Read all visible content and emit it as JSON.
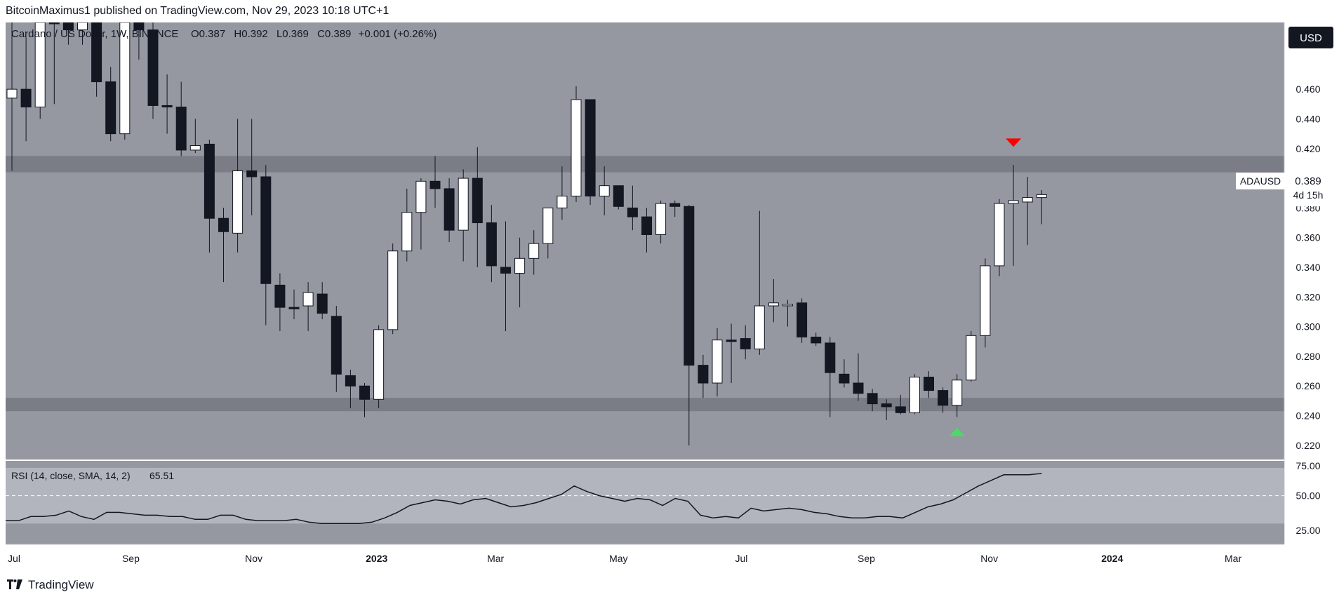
{
  "header": {
    "published_line": "BitcoinMaximus1 published on TradingView.com, Nov 29, 2023 10:18 UTC+1"
  },
  "legend": {
    "symbol_line": "Cardano / US Dollar, 1W, BINANCE",
    "open_label": "O",
    "open_value": "0.387",
    "high_label": "H",
    "high_value": "0.392",
    "low_label": "L",
    "low_value": "0.369",
    "close_label": "C",
    "close_value": "0.389",
    "change": "+0.001 (+0.26%)"
  },
  "currency_button": "USD",
  "price_tag": {
    "symbol": "ADAUSD",
    "price": "0.389",
    "countdown": "4d 15h"
  },
  "rsi_legend": {
    "label": "RSI (14, close, SMA, 14, 2)",
    "value": "65.51"
  },
  "footer": {
    "logo_text": "TradingView",
    "logo_icon": "tradingview-logo-icon"
  },
  "colors": {
    "background": "#9598a1",
    "candle_up": "#ffffff",
    "candle_down": "#131722",
    "zone": "#7a7d86",
    "arrow_down": "#ff0000",
    "arrow_up": "#4cd964",
    "rsi_band": "#b2b5be",
    "rsi_line": "#131722",
    "price_tag_bg": "#ffffff"
  },
  "chart_data": [
    {
      "type": "candlestick",
      "title": "Cardano / US Dollar, 1W, BINANCE",
      "x_ticks": [
        "Jul",
        "Sep",
        "Nov",
        "2023",
        "Mar",
        "May",
        "Jul",
        "Sep",
        "Nov",
        "2024",
        "Mar"
      ],
      "y_ticks": [
        "0.220",
        "0.240",
        "0.260",
        "0.280",
        "0.300",
        "0.320",
        "0.340",
        "0.360",
        "0.380",
        "0.400",
        "0.420",
        "0.440",
        "0.460"
      ],
      "ylim": [
        0.21,
        0.505
      ],
      "zones": [
        {
          "name": "resistance",
          "from": 0.404,
          "to": 0.415
        },
        {
          "name": "support",
          "from": 0.243,
          "to": 0.252
        }
      ],
      "candles": [
        {
          "date": "2022-07-04",
          "o": 0.454,
          "h": 0.52,
          "l": 0.405,
          "c": 0.46
        },
        {
          "date": "2022-07-11",
          "o": 0.46,
          "h": 0.495,
          "l": 0.425,
          "c": 0.448
        },
        {
          "date": "2022-07-18",
          "o": 0.448,
          "h": 0.55,
          "l": 0.44,
          "c": 0.53
        },
        {
          "date": "2022-07-25",
          "o": 0.53,
          "h": 0.56,
          "l": 0.45,
          "c": 0.52
        },
        {
          "date": "2022-08-01",
          "o": 0.52,
          "h": 0.55,
          "l": 0.49,
          "c": 0.5
        },
        {
          "date": "2022-08-08",
          "o": 0.5,
          "h": 0.57,
          "l": 0.49,
          "c": 0.53
        },
        {
          "date": "2022-08-15",
          "o": 0.53,
          "h": 0.56,
          "l": 0.455,
          "c": 0.465
        },
        {
          "date": "2022-08-22",
          "o": 0.465,
          "h": 0.475,
          "l": 0.425,
          "c": 0.43
        },
        {
          "date": "2022-08-29",
          "o": 0.43,
          "h": 0.55,
          "l": 0.426,
          "c": 0.53
        },
        {
          "date": "2022-09-05",
          "o": 0.53,
          "h": 0.55,
          "l": 0.48,
          "c": 0.5
        },
        {
          "date": "2022-09-12",
          "o": 0.5,
          "h": 0.52,
          "l": 0.44,
          "c": 0.449
        },
        {
          "date": "2022-09-19",
          "o": 0.449,
          "h": 0.47,
          "l": 0.43,
          "c": 0.448
        },
        {
          "date": "2022-09-26",
          "o": 0.448,
          "h": 0.465,
          "l": 0.415,
          "c": 0.419
        },
        {
          "date": "2022-10-03",
          "o": 0.419,
          "h": 0.44,
          "l": 0.417,
          "c": 0.422
        },
        {
          "date": "2022-10-10",
          "o": 0.423,
          "h": 0.426,
          "l": 0.35,
          "c": 0.373
        },
        {
          "date": "2022-10-17",
          "o": 0.373,
          "h": 0.38,
          "l": 0.33,
          "c": 0.364
        },
        {
          "date": "2022-10-24",
          "o": 0.363,
          "h": 0.44,
          "l": 0.35,
          "c": 0.405
        },
        {
          "date": "2022-10-31",
          "o": 0.405,
          "h": 0.44,
          "l": 0.375,
          "c": 0.401
        },
        {
          "date": "2022-11-07",
          "o": 0.401,
          "h": 0.409,
          "l": 0.301,
          "c": 0.329
        },
        {
          "date": "2022-11-14",
          "o": 0.328,
          "h": 0.336,
          "l": 0.297,
          "c": 0.313
        },
        {
          "date": "2022-11-21",
          "o": 0.313,
          "h": 0.325,
          "l": 0.305,
          "c": 0.312
        },
        {
          "date": "2022-11-28",
          "o": 0.314,
          "h": 0.33,
          "l": 0.297,
          "c": 0.323
        },
        {
          "date": "2022-12-05",
          "o": 0.322,
          "h": 0.33,
          "l": 0.305,
          "c": 0.309
        },
        {
          "date": "2022-12-12",
          "o": 0.307,
          "h": 0.314,
          "l": 0.256,
          "c": 0.268
        },
        {
          "date": "2022-12-19",
          "o": 0.267,
          "h": 0.271,
          "l": 0.245,
          "c": 0.26
        },
        {
          "date": "2022-12-26",
          "o": 0.26,
          "h": 0.262,
          "l": 0.239,
          "c": 0.251
        },
        {
          "date": "2023-01-02",
          "o": 0.251,
          "h": 0.301,
          "l": 0.245,
          "c": 0.298
        },
        {
          "date": "2023-01-09",
          "o": 0.298,
          "h": 0.356,
          "l": 0.295,
          "c": 0.351
        },
        {
          "date": "2023-01-16",
          "o": 0.351,
          "h": 0.393,
          "l": 0.344,
          "c": 0.377
        },
        {
          "date": "2023-01-23",
          "o": 0.377,
          "h": 0.4,
          "l": 0.352,
          "c": 0.398
        },
        {
          "date": "2023-01-30",
          "o": 0.398,
          "h": 0.415,
          "l": 0.38,
          "c": 0.393
        },
        {
          "date": "2023-02-06",
          "o": 0.393,
          "h": 0.4,
          "l": 0.357,
          "c": 0.365
        },
        {
          "date": "2023-02-13",
          "o": 0.365,
          "h": 0.406,
          "l": 0.344,
          "c": 0.4
        },
        {
          "date": "2023-02-20",
          "o": 0.4,
          "h": 0.421,
          "l": 0.34,
          "c": 0.37
        },
        {
          "date": "2023-02-27",
          "o": 0.37,
          "h": 0.382,
          "l": 0.33,
          "c": 0.341
        },
        {
          "date": "2023-03-06",
          "o": 0.34,
          "h": 0.371,
          "l": 0.297,
          "c": 0.336
        },
        {
          "date": "2023-03-13",
          "o": 0.336,
          "h": 0.36,
          "l": 0.313,
          "c": 0.346
        },
        {
          "date": "2023-03-20",
          "o": 0.346,
          "h": 0.365,
          "l": 0.335,
          "c": 0.356
        },
        {
          "date": "2023-03-27",
          "o": 0.356,
          "h": 0.38,
          "l": 0.346,
          "c": 0.38
        },
        {
          "date": "2023-04-03",
          "o": 0.38,
          "h": 0.408,
          "l": 0.372,
          "c": 0.388
        },
        {
          "date": "2023-04-10",
          "o": 0.388,
          "h": 0.462,
          "l": 0.384,
          "c": 0.453
        },
        {
          "date": "2023-04-17",
          "o": 0.453,
          "h": 0.453,
          "l": 0.382,
          "c": 0.388
        },
        {
          "date": "2023-04-24",
          "o": 0.388,
          "h": 0.408,
          "l": 0.375,
          "c": 0.395
        },
        {
          "date": "2023-05-01",
          "o": 0.395,
          "h": 0.395,
          "l": 0.379,
          "c": 0.381
        },
        {
          "date": "2023-05-08",
          "o": 0.38,
          "h": 0.395,
          "l": 0.365,
          "c": 0.374
        },
        {
          "date": "2023-05-15",
          "o": 0.374,
          "h": 0.38,
          "l": 0.35,
          "c": 0.362
        },
        {
          "date": "2023-05-22",
          "o": 0.362,
          "h": 0.385,
          "l": 0.356,
          "c": 0.383
        },
        {
          "date": "2023-05-29",
          "o": 0.383,
          "h": 0.385,
          "l": 0.374,
          "c": 0.381
        },
        {
          "date": "2023-06-05",
          "o": 0.381,
          "h": 0.382,
          "l": 0.22,
          "c": 0.274
        },
        {
          "date": "2023-06-12",
          "o": 0.274,
          "h": 0.281,
          "l": 0.252,
          "c": 0.262
        },
        {
          "date": "2023-06-19",
          "o": 0.262,
          "h": 0.299,
          "l": 0.253,
          "c": 0.291
        },
        {
          "date": "2023-06-26",
          "o": 0.291,
          "h": 0.302,
          "l": 0.262,
          "c": 0.29
        },
        {
          "date": "2023-07-03",
          "o": 0.292,
          "h": 0.301,
          "l": 0.278,
          "c": 0.285
        },
        {
          "date": "2023-07-10",
          "o": 0.285,
          "h": 0.378,
          "l": 0.281,
          "c": 0.314
        },
        {
          "date": "2023-07-17",
          "o": 0.314,
          "h": 0.332,
          "l": 0.303,
          "c": 0.316
        },
        {
          "date": "2023-07-24",
          "o": 0.315,
          "h": 0.318,
          "l": 0.3,
          "c": 0.315
        },
        {
          "date": "2023-07-31",
          "o": 0.316,
          "h": 0.319,
          "l": 0.289,
          "c": 0.293
        },
        {
          "date": "2023-08-07",
          "o": 0.293,
          "h": 0.296,
          "l": 0.287,
          "c": 0.289
        },
        {
          "date": "2023-08-14",
          "o": 0.289,
          "h": 0.293,
          "l": 0.239,
          "c": 0.269
        },
        {
          "date": "2023-08-21",
          "o": 0.268,
          "h": 0.278,
          "l": 0.259,
          "c": 0.262
        },
        {
          "date": "2023-08-28",
          "o": 0.262,
          "h": 0.282,
          "l": 0.25,
          "c": 0.255
        },
        {
          "date": "2023-09-04",
          "o": 0.255,
          "h": 0.258,
          "l": 0.243,
          "c": 0.248
        },
        {
          "date": "2023-09-11",
          "o": 0.248,
          "h": 0.251,
          "l": 0.237,
          "c": 0.246
        },
        {
          "date": "2023-09-18",
          "o": 0.246,
          "h": 0.254,
          "l": 0.241,
          "c": 0.242
        },
        {
          "date": "2023-09-25",
          "o": 0.242,
          "h": 0.268,
          "l": 0.241,
          "c": 0.266
        },
        {
          "date": "2023-10-02",
          "o": 0.266,
          "h": 0.27,
          "l": 0.252,
          "c": 0.257
        },
        {
          "date": "2023-10-09",
          "o": 0.257,
          "h": 0.259,
          "l": 0.242,
          "c": 0.247
        },
        {
          "date": "2023-10-16",
          "o": 0.247,
          "h": 0.268,
          "l": 0.239,
          "c": 0.264
        },
        {
          "date": "2023-10-23",
          "o": 0.264,
          "h": 0.297,
          "l": 0.263,
          "c": 0.294
        },
        {
          "date": "2023-10-30",
          "o": 0.294,
          "h": 0.346,
          "l": 0.286,
          "c": 0.341
        },
        {
          "date": "2023-11-06",
          "o": 0.341,
          "h": 0.386,
          "l": 0.334,
          "c": 0.383
        },
        {
          "date": "2023-11-13",
          "o": 0.383,
          "h": 0.409,
          "l": 0.341,
          "c": 0.385
        },
        {
          "date": "2023-11-20",
          "o": 0.384,
          "h": 0.401,
          "l": 0.355,
          "c": 0.387
        },
        {
          "date": "2023-11-27",
          "o": 0.387,
          "h": 0.392,
          "l": 0.369,
          "c": 0.389
        }
      ],
      "markers": [
        {
          "type": "arrow-down",
          "date": "2023-11-13",
          "price": 0.424
        },
        {
          "type": "arrow-up",
          "date": "2023-10-16",
          "price": 0.229
        }
      ]
    },
    {
      "type": "line",
      "title": "RSI (14, close, SMA, 14, 2)",
      "y_ticks": [
        "25.00",
        "50.00",
        "75.00"
      ],
      "ylim": [
        15,
        75
      ],
      "bands": {
        "upper": 70,
        "middle": 50,
        "lower": 30
      },
      "series": [
        {
          "values": [
            32,
            32,
            35,
            35,
            36,
            39,
            35,
            33,
            38,
            38,
            37,
            36,
            36,
            35,
            35,
            33,
            33,
            36,
            36,
            33,
            32,
            32,
            32,
            33,
            31,
            30,
            30,
            30,
            30,
            31,
            34,
            38,
            43,
            45,
            47,
            46,
            44,
            47,
            48,
            45,
            42,
            43,
            45,
            48,
            51,
            57,
            53,
            50,
            48,
            46,
            48,
            47,
            43,
            48,
            46,
            36,
            34,
            35,
            34,
            41,
            39,
            40,
            41,
            40,
            38,
            37,
            35,
            34,
            34,
            35,
            35,
            34,
            38,
            42,
            44,
            47,
            52,
            57,
            61,
            65,
            65,
            65,
            66
          ]
        }
      ]
    }
  ]
}
